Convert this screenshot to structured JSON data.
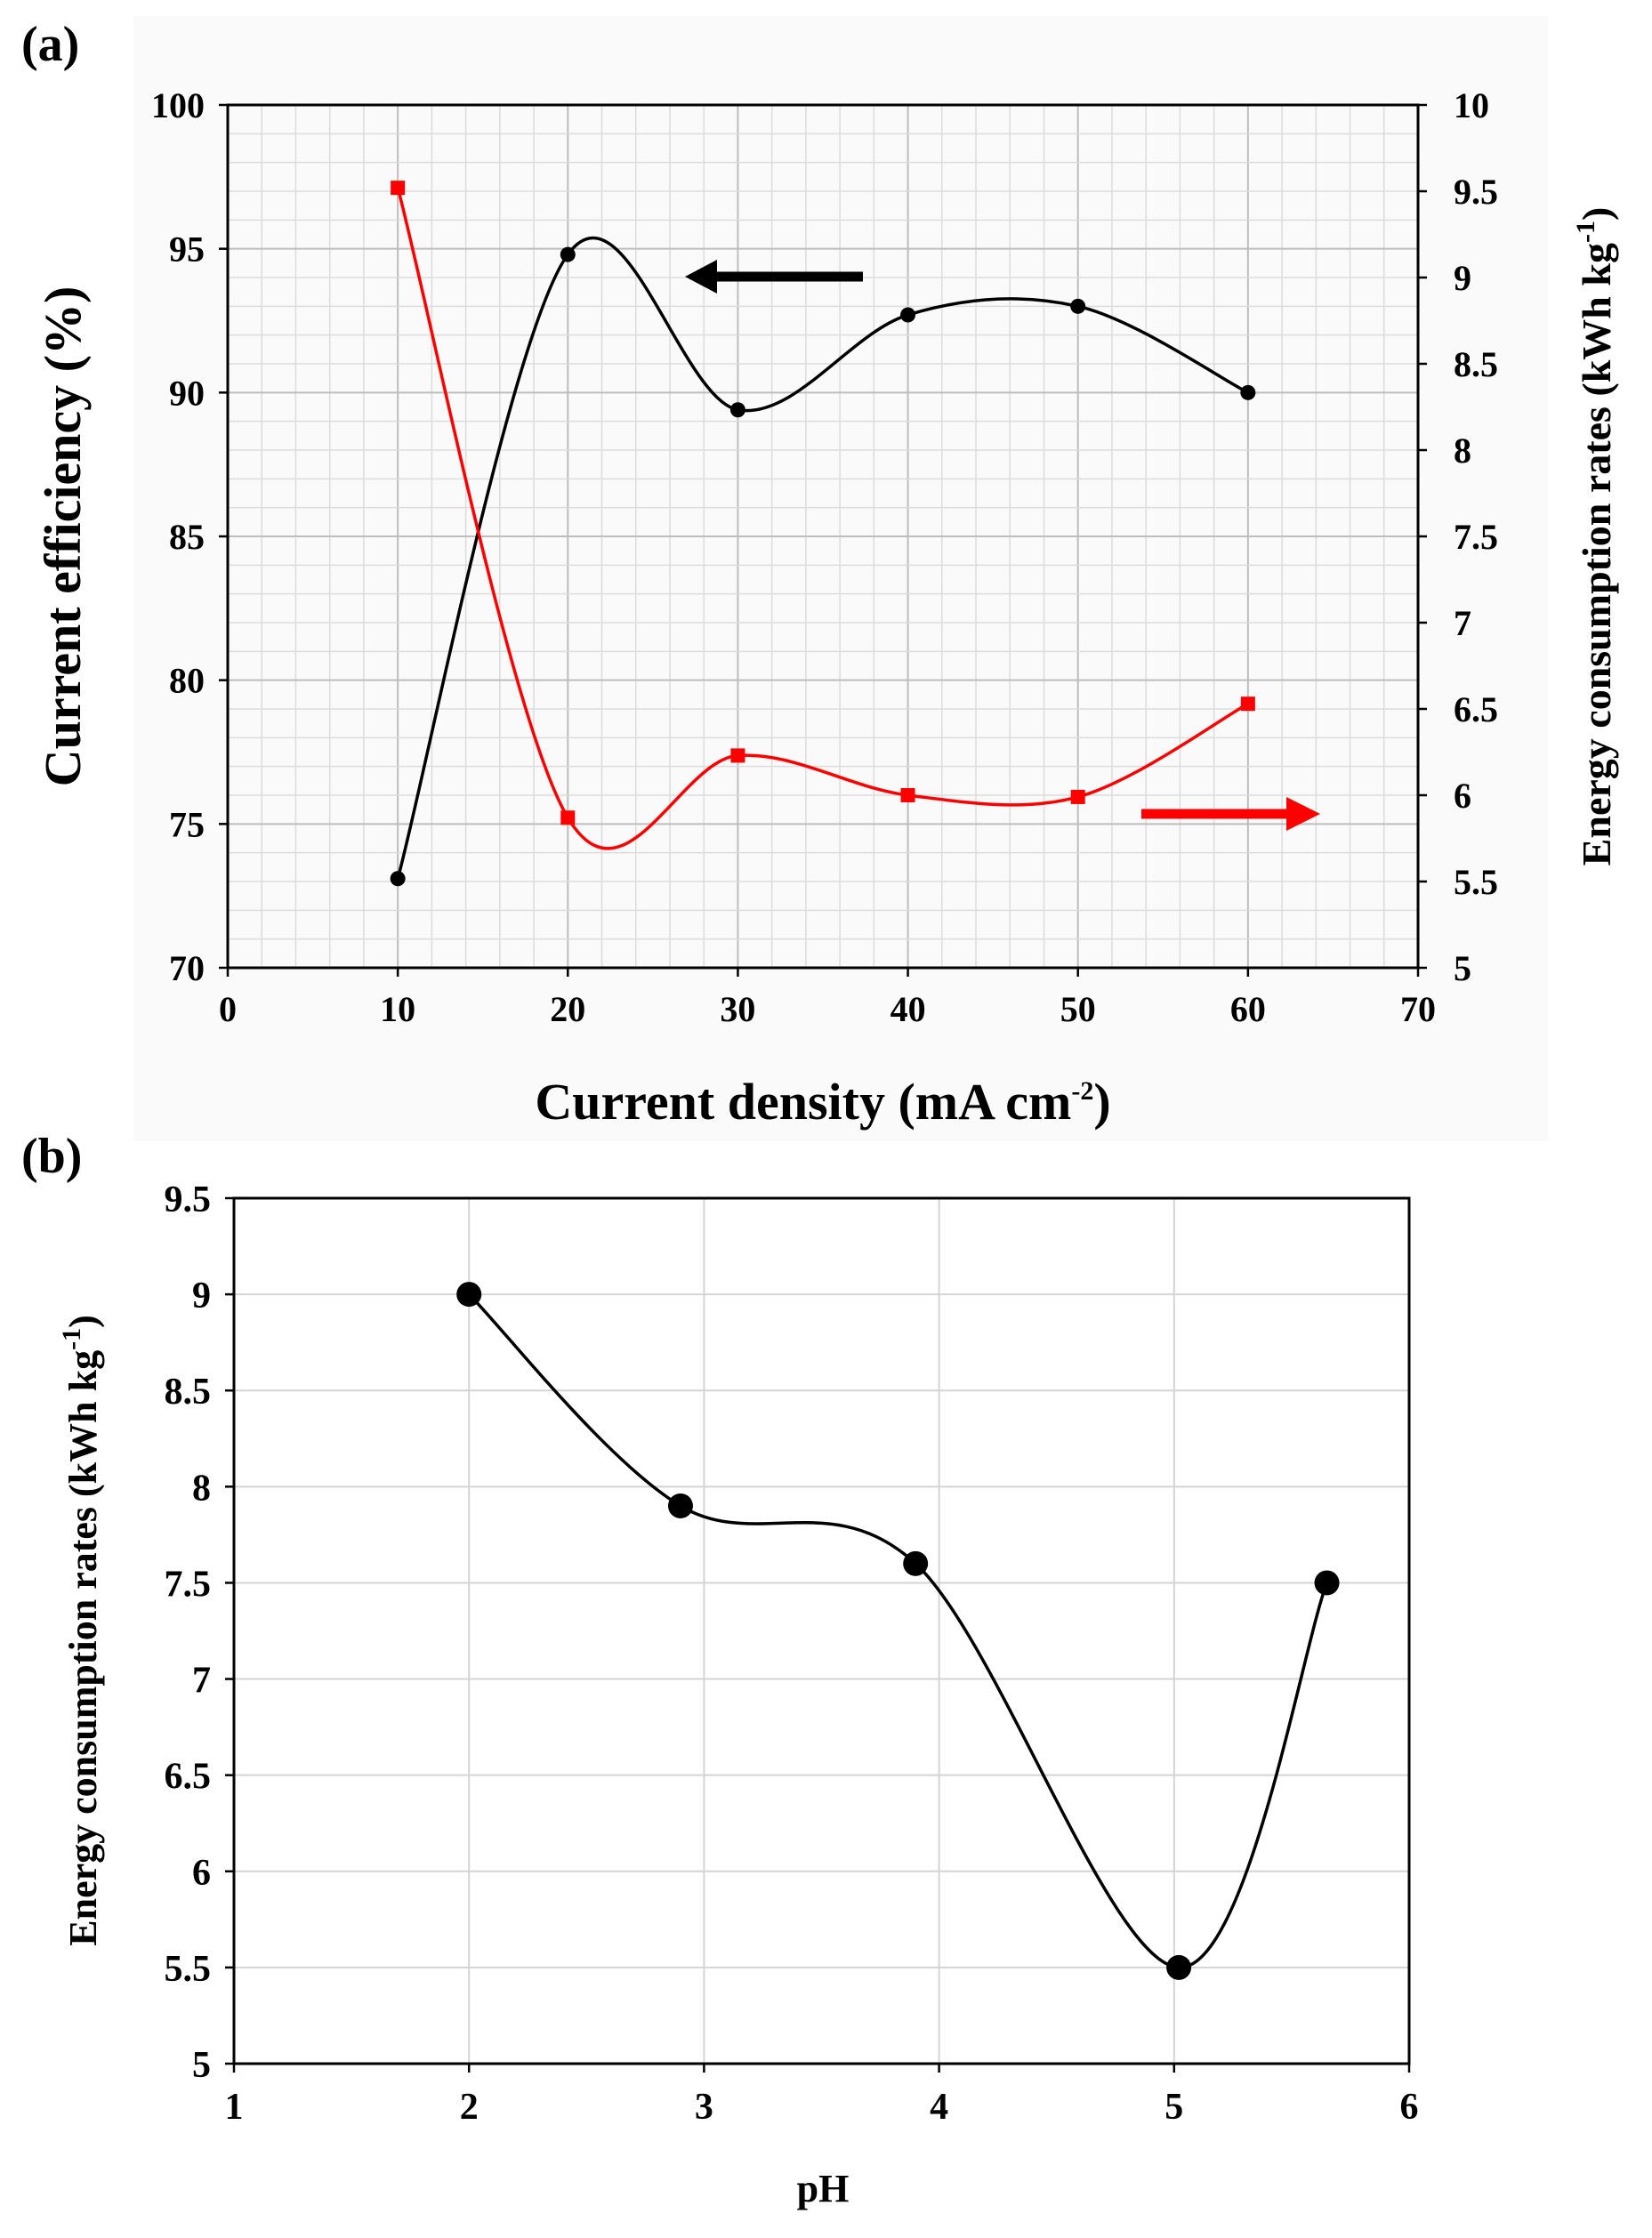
{
  "chart_data": [
    {
      "panel_label": "(a)",
      "type": "line",
      "x": [
        10,
        20,
        30,
        40,
        50,
        60
      ],
      "xlabel_main": "Current density (mA cm",
      "xlabel_sup": "-2",
      "xlabel_close": ")",
      "xlim": [
        0,
        70
      ],
      "xticks": [
        "0",
        "10",
        "20",
        "30",
        "40",
        "50",
        "60",
        "70"
      ],
      "ylabel": "Current efficiency (%)",
      "ylim": [
        70,
        100
      ],
      "yticks": [
        "70",
        "75",
        "80",
        "85",
        "90",
        "95",
        "100"
      ],
      "y2label_main": "Energy consumption rates  (kWh kg",
      "y2label_sup": "-1",
      "y2label_close": ")",
      "y2lim": [
        5,
        10
      ],
      "y2ticks": [
        "5",
        "5.5",
        "6",
        "6.5",
        "7",
        "7.5",
        "8",
        "8.5",
        "9",
        "9.5",
        "10"
      ],
      "grid": true,
      "series": [
        {
          "name": "Current efficiency",
          "axis": "left",
          "color": "#000000",
          "marker": "circle",
          "values": [
            73.1,
            94.8,
            89.4,
            92.7,
            93.0,
            90.0
          ]
        },
        {
          "name": "Energy consumption rates",
          "axis": "right",
          "color": "#ff0000",
          "marker": "square",
          "values": [
            9.52,
            5.87,
            6.23,
            6.0,
            5.99,
            6.53
          ]
        }
      ],
      "annotations": [
        {
          "type": "arrow",
          "direction": "left",
          "color": "#000000",
          "meaning": "left axis"
        },
        {
          "type": "arrow",
          "direction": "right",
          "color": "#ff0000",
          "meaning": "right axis"
        }
      ]
    },
    {
      "panel_label": "(b)",
      "type": "line",
      "x": [
        2.0,
        2.9,
        3.9,
        5.02,
        5.65
      ],
      "xlabel": "pH",
      "xlim": [
        1,
        6
      ],
      "xticks": [
        "1",
        "2",
        "3",
        "4",
        "5",
        "6"
      ],
      "ylabel_main": "Energy consumption rates  (kWh kg",
      "ylabel_sup": "-1",
      "ylabel_close": ")",
      "ylim": [
        5,
        9.5
      ],
      "yticks": [
        "5",
        "5.5",
        "6",
        "6.5",
        "7",
        "7.5",
        "8",
        "8.5",
        "9",
        "9.5"
      ],
      "grid": true,
      "series": [
        {
          "name": "Energy consumption rates",
          "color": "#000000",
          "marker": "circle",
          "values": [
            9.0,
            7.9,
            7.6,
            5.5,
            7.5
          ]
        }
      ]
    }
  ]
}
